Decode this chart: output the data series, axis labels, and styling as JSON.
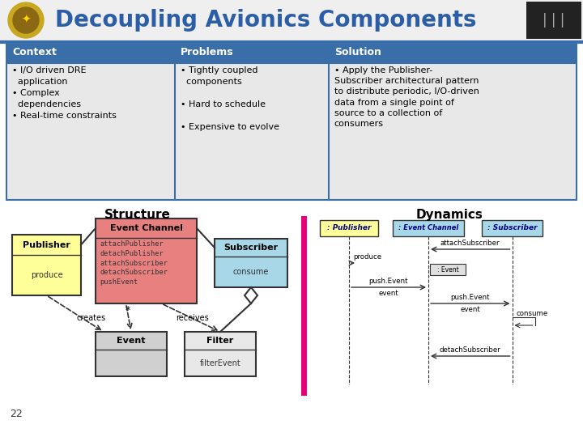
{
  "title": "Decoupling Avionics Components",
  "title_color": "#2B5EA7",
  "bg_color": "#FFFFFF",
  "header_bg": "#3A6EA8",
  "header_text_color": "#FFFFFF",
  "table_bg": "#E8E8E8",
  "table_border": "#3A6EA8",
  "header_row": [
    "Context",
    "Problems",
    "Solution"
  ],
  "context_text": "• I/O driven DRE\n  application\n• Complex\n  dependencies\n• Real-time constraints",
  "problems_text": "• Tightly coupled\n  components\n\n• Hard to schedule\n\n• Expensive to evolve",
  "solution_text": "• Apply the Publisher-\nSubscriber architectural pattern\nto distribute periodic, I/O-driven\ndata from a single point of\nsource to a collection of\nconsumers",
  "structure_title": "Structure",
  "dynamics_title": "Dynamics",
  "publisher_color": "#FFFF99",
  "event_channel_color": "#E88080",
  "subscriber_color": "#A8D8E8",
  "event_color": "#D0D0D0",
  "filter_color": "#E8E8E8",
  "dynamics_publisher_color": "#FFFF99",
  "dynamics_channel_color": "#A8D8E8",
  "dynamics_subscriber_color": "#A8D8E8",
  "pink_line_color": "#E8007A",
  "slide_number": "22",
  "dark_color": "#333333",
  "navy_color": "#000080"
}
